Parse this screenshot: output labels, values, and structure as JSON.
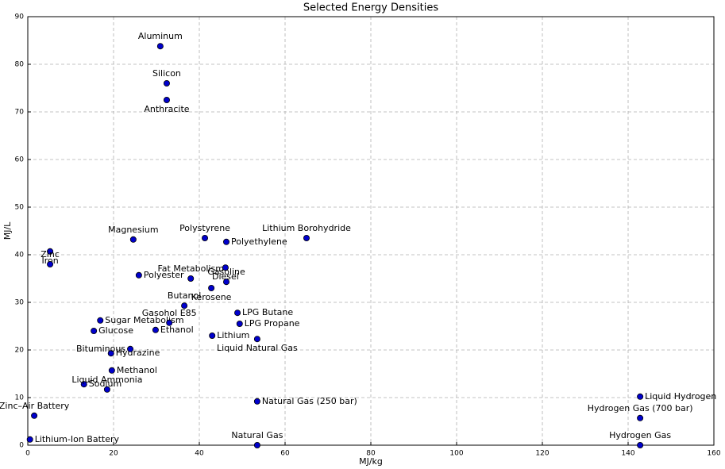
{
  "chart_data": {
    "type": "scatter",
    "title": "Selected Energy Densities",
    "x_label": "MJ/kg",
    "y_label": "MJ/L",
    "labels": [
      "Aluminum",
      "Silicon",
      "Anthracite",
      "Magnesium",
      "Polystyrene",
      "Polyethylene",
      "Lithium Borohydride",
      "Iron",
      "Zinc",
      "Fat Metabolism",
      "Diesel",
      "Polyester",
      "Kerosene",
      "Gasoline",
      "Butanol",
      "LPG Butane",
      "LPG Propane",
      "Sugar Metabolism",
      "Gasohol E85",
      "Glucose",
      "Ethanol",
      "Lithium",
      "Liquid Natural Gas",
      "Hydrazine",
      "Bituminous",
      "Methanol",
      "Sodium",
      "Liquid Ammonia",
      "Natural Gas (250 bar)",
      "Zinc–Air Battery",
      "Lithium-Ion Battery",
      "Natural Gas",
      "Liquid Hydrogen",
      "Hydrogen Gas (700 bar)",
      "Hydrogen Gas"
    ],
    "x": [
      30.9,
      32.4,
      32.4,
      24.6,
      41.3,
      46.3,
      65,
      5.2,
      5.2,
      38,
      46.1,
      25.9,
      42.8,
      46.3,
      36.5,
      48.9,
      49.4,
      16.9,
      33,
      15.4,
      29.8,
      43,
      53.5,
      19.4,
      23.9,
      19.6,
      13.1,
      18.5,
      53.5,
      1.5,
      0.5,
      53.5,
      142.8,
      142.8,
      142.8
    ],
    "values": [
      83.8,
      76,
      72.5,
      43.2,
      43.5,
      42.7,
      43.5,
      40.7,
      38,
      35,
      37.3,
      35.7,
      33,
      34.3,
      29.3,
      27.8,
      25.5,
      26.2,
      25.7,
      24,
      24.2,
      23,
      22.3,
      19.3,
      20.2,
      15.7,
      12.8,
      11.7,
      9.2,
      6.2,
      1.2,
      0,
      10.2,
      5.7,
      0
    ],
    "color": "#0000cc",
    "edgecolor": "#000000",
    "xlim": [
      0,
      160
    ],
    "ylim": [
      0,
      90
    ],
    "xticks": [
      0,
      20,
      40,
      60,
      80,
      100,
      120,
      140,
      160
    ],
    "yticks": [
      0,
      10,
      20,
      30,
      40,
      50,
      60,
      70,
      80,
      90
    ],
    "grid": true
  }
}
